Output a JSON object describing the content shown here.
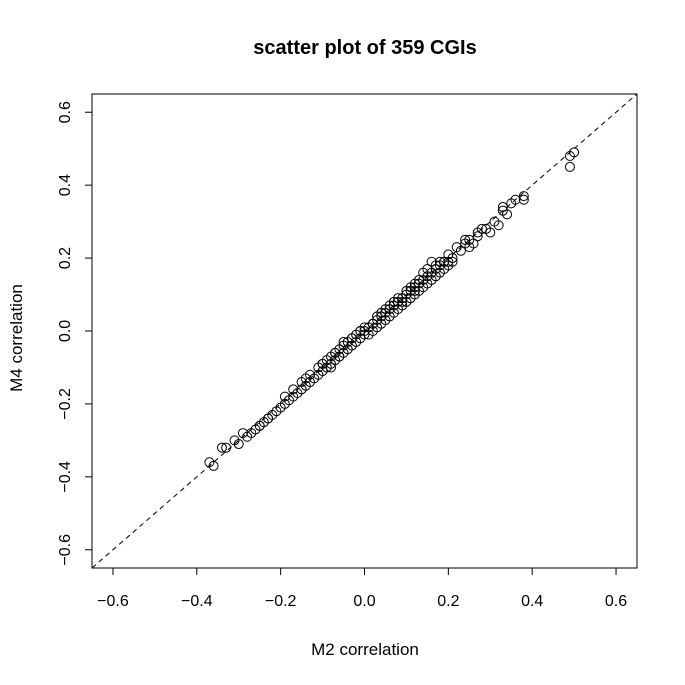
{
  "chart_data": {
    "type": "scatter",
    "title": "scatter plot of 359 CGIs",
    "xlabel": "M2 correlation",
    "ylabel": "M4 correlation",
    "xlim": [
      -0.65,
      0.65
    ],
    "ylim": [
      -0.65,
      0.65
    ],
    "xticks": [
      "-0.6",
      "-0.4",
      "-0.2",
      "0.0",
      "0.2",
      "0.4",
      "0.6"
    ],
    "yticks": [
      "-0.6",
      "-0.4",
      "-0.2",
      "0.0",
      "0.2",
      "0.4",
      "0.6"
    ],
    "grid": false,
    "reference_line": {
      "style": "dashed",
      "slope": 1,
      "intercept": 0
    },
    "series": [
      {
        "marker": "open-circle",
        "x": [
          0.49,
          0.5,
          0.49,
          0.38,
          0.36,
          0.35,
          0.34,
          0.33,
          0.32,
          0.33,
          0.3,
          0.28,
          0.27,
          0.27,
          0.25,
          0.25,
          0.24,
          0.23,
          0.21,
          0.2,
          0.2,
          0.19,
          0.19,
          0.18,
          0.18,
          0.17,
          0.17,
          0.16,
          0.16,
          0.15,
          0.15,
          0.14,
          0.14,
          0.13,
          0.13,
          0.12,
          0.12,
          0.11,
          0.11,
          0.1,
          0.1,
          0.09,
          0.09,
          0.08,
          0.08,
          0.07,
          0.07,
          0.06,
          0.06,
          0.05,
          0.05,
          0.04,
          0.04,
          0.03,
          0.03,
          0.02,
          0.02,
          0.01,
          0.01,
          0.0,
          0.0,
          -0.01,
          -0.01,
          -0.02,
          -0.02,
          -0.03,
          -0.03,
          -0.04,
          -0.04,
          -0.05,
          -0.05,
          -0.06,
          -0.06,
          -0.07,
          -0.07,
          -0.08,
          -0.08,
          -0.09,
          -0.09,
          -0.1,
          -0.1,
          -0.11,
          -0.12,
          -0.13,
          -0.14,
          -0.15,
          -0.16,
          -0.17,
          -0.18,
          -0.19,
          -0.2,
          -0.21,
          -0.22,
          -0.23,
          -0.24,
          -0.25,
          -0.26,
          -0.27,
          -0.28,
          -0.3,
          -0.31,
          -0.34,
          -0.36,
          -0.37,
          0.26,
          0.21,
          0.17,
          0.13,
          0.11,
          0.09,
          0.05,
          0.02,
          -0.03,
          -0.07,
          -0.08,
          -0.13,
          -0.17,
          0.16,
          -0.05,
          0.14,
          0.12,
          0.22,
          0.31,
          0.38,
          -0.29,
          -0.23,
          -0.15,
          0.19,
          0.06,
          -0.11,
          0.08,
          0.03,
          -0.01,
          0.1,
          0.15,
          0.2,
          0.24,
          0.29,
          -0.19,
          -0.25,
          -0.33,
          0.0,
          0.04,
          -0.06,
          0.12,
          0.18,
          -0.14,
          -0.1,
          0.07
        ],
        "y": [
          0.48,
          0.49,
          0.45,
          0.36,
          0.36,
          0.35,
          0.32,
          0.34,
          0.29,
          0.33,
          0.27,
          0.28,
          0.27,
          0.26,
          0.25,
          0.23,
          0.24,
          0.22,
          0.2,
          0.19,
          0.18,
          0.19,
          0.17,
          0.18,
          0.16,
          0.17,
          0.15,
          0.16,
          0.14,
          0.15,
          0.13,
          0.14,
          0.12,
          0.13,
          0.11,
          0.12,
          0.1,
          0.11,
          0.09,
          0.1,
          0.08,
          0.09,
          0.07,
          0.08,
          0.06,
          0.07,
          0.05,
          0.06,
          0.04,
          0.05,
          0.03,
          0.04,
          0.02,
          0.03,
          0.01,
          0.02,
          0.0,
          0.01,
          -0.01,
          0.0,
          -0.01,
          -0.02,
          0.0,
          -0.03,
          -0.01,
          -0.04,
          -0.02,
          -0.05,
          -0.03,
          -0.06,
          -0.04,
          -0.07,
          -0.05,
          -0.08,
          -0.06,
          -0.09,
          -0.07,
          -0.1,
          -0.08,
          -0.11,
          -0.09,
          -0.12,
          -0.13,
          -0.14,
          -0.15,
          -0.16,
          -0.17,
          -0.18,
          -0.19,
          -0.2,
          -0.21,
          -0.22,
          -0.23,
          -0.24,
          -0.25,
          -0.26,
          -0.27,
          -0.28,
          -0.29,
          -0.31,
          -0.3,
          -0.32,
          -0.37,
          -0.36,
          0.24,
          0.19,
          0.18,
          0.14,
          0.12,
          0.08,
          0.06,
          0.02,
          -0.02,
          -0.06,
          -0.1,
          -0.12,
          -0.16,
          0.19,
          -0.03,
          0.16,
          0.11,
          0.23,
          0.3,
          0.37,
          -0.28,
          -0.24,
          -0.14,
          0.19,
          0.07,
          -0.1,
          0.09,
          0.04,
          0.0,
          0.11,
          0.17,
          0.21,
          0.25,
          0.28,
          -0.18,
          -0.26,
          -0.32,
          0.01,
          0.05,
          -0.07,
          0.13,
          0.19,
          -0.13,
          -0.09,
          0.08
        ]
      }
    ]
  }
}
